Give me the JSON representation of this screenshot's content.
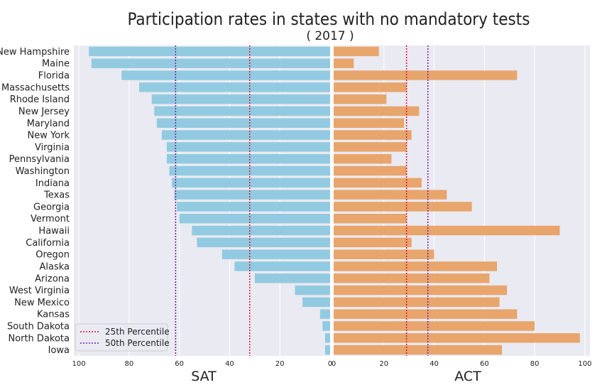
{
  "chart_data": {
    "type": "bar",
    "orientation": "horizontal",
    "title": "Participation rates in states with no mandatory tests",
    "subtitle": "( 2017 )",
    "categories": [
      "New Hampshire",
      "Maine",
      "Florida",
      "Massachusetts",
      "Rhode Island",
      "New Jersey",
      "Maryland",
      "New York",
      "Virginia",
      "Pennsylvania",
      "Washington",
      "Indiana",
      "Texas",
      "Georgia",
      "Vermont",
      "Hawaii",
      "California",
      "Oregon",
      "Alaska",
      "Arizona",
      "West Virginia",
      "New Mexico",
      "Kansas",
      "South Dakota",
      "North Dakota",
      "Iowa"
    ],
    "panels": [
      {
        "name": "SAT",
        "xlabel": "SAT",
        "xlim": [
          102,
          0
        ],
        "ticks": [
          "100",
          "80",
          "60",
          "40",
          "20",
          "0"
        ],
        "tick_values": [
          100,
          80,
          60,
          40,
          20,
          0
        ],
        "color": "#92cbe1",
        "values": [
          96,
          95,
          83,
          76,
          71,
          70,
          69,
          67,
          65,
          65,
          64,
          63,
          62,
          61,
          60,
          55,
          53,
          43,
          38,
          30,
          14,
          11,
          4,
          3,
          2,
          2
        ],
        "percentile_25": 32,
        "percentile_50": 61.5
      },
      {
        "name": "ACT",
        "xlabel": "ACT",
        "xlim": [
          0,
          102
        ],
        "ticks": [
          "0",
          "20",
          "40",
          "60",
          "80",
          "100"
        ],
        "tick_values": [
          0,
          20,
          40,
          60,
          80,
          100
        ],
        "color": "#e8a56c",
        "values": [
          18,
          8,
          73,
          29,
          21,
          34,
          28,
          31,
          29,
          23,
          29,
          35,
          45,
          55,
          29,
          90,
          31,
          40,
          65,
          62,
          69,
          66,
          73,
          80,
          98,
          67
        ],
        "percentile_25": 29,
        "percentile_50": 37.5
      }
    ],
    "legend": {
      "placement": "lower-left",
      "entries": [
        {
          "label": "25th Percentile",
          "color": "#e3102c"
        },
        {
          "label": "50th Percentile",
          "color": "#7a1fa2"
        }
      ]
    },
    "grid": true,
    "background": "#eaeaf2"
  }
}
